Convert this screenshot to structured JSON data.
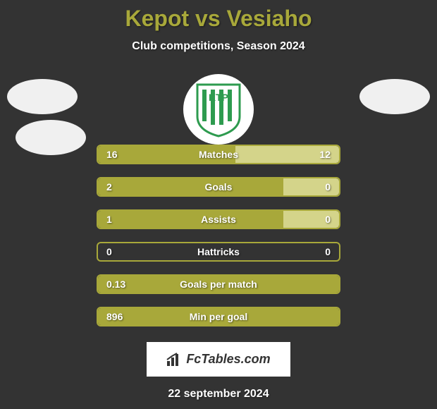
{
  "title": "Kepot vs Vesiaho",
  "title_color": "#a8a83a",
  "subtitle": "Club competitions, Season 2024",
  "date": "22 september 2024",
  "left_color": "#a8a83a",
  "right_color": "#d4d48a",
  "stats": [
    {
      "label": "Matches",
      "left_value": "16",
      "right_value": "12",
      "left_pct": 57,
      "right_pct": 43
    },
    {
      "label": "Goals",
      "left_value": "2",
      "right_value": "0",
      "left_pct": 77,
      "right_pct": 23
    },
    {
      "label": "Assists",
      "left_value": "1",
      "right_value": "0",
      "left_pct": 77,
      "right_pct": 23
    },
    {
      "label": "Hattricks",
      "left_value": "0",
      "right_value": "0",
      "left_pct": 0,
      "right_pct": 0
    },
    {
      "label": "Goals per match",
      "left_value": "0.13",
      "right_value": "",
      "left_pct": 100,
      "right_pct": 0
    },
    {
      "label": "Min per goal",
      "left_value": "896",
      "right_value": "",
      "left_pct": 100,
      "right_pct": 0
    }
  ],
  "footer_text": "FcTables.com",
  "ktp_label": "KTP"
}
